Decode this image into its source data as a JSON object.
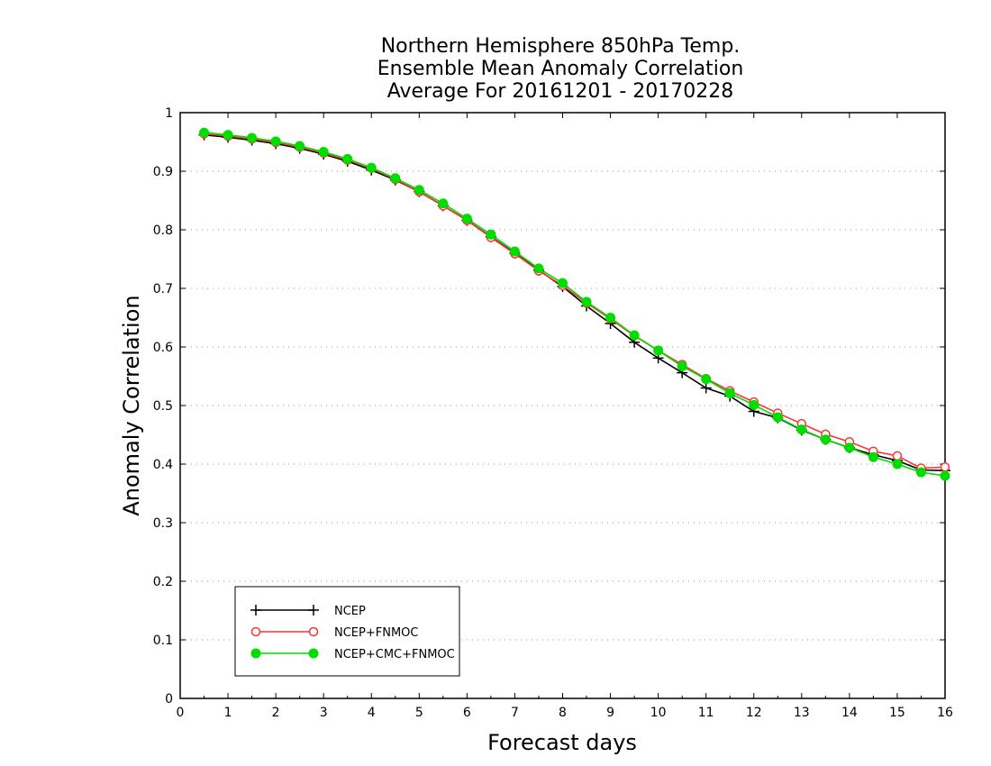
{
  "chart_data": {
    "type": "line",
    "title_lines": [
      "Northern Hemisphere 850hPa Temp.",
      "Ensemble Mean Anomaly Correlation",
      "Average For 20161201 - 20170228"
    ],
    "xlabel": "Forecast days",
    "ylabel": "Anomaly Correlation",
    "xlim": [
      0,
      16
    ],
    "ylim": [
      0,
      1
    ],
    "x_ticks": [
      "0",
      "1",
      "2",
      "3",
      "4",
      "5",
      "6",
      "7",
      "8",
      "9",
      "10",
      "11",
      "12",
      "13",
      "14",
      "15",
      "16"
    ],
    "y_ticks": [
      "0",
      "0.1",
      "0.2",
      "0.3",
      "0.4",
      "0.5",
      "0.6",
      "0.7",
      "0.8",
      "0.9",
      "1"
    ],
    "grid": "horizontal-dotted",
    "legend_position": "bottom-left",
    "x": [
      0.5,
      1,
      1.5,
      2,
      2.5,
      3,
      3.5,
      4,
      4.5,
      5,
      5.5,
      6,
      6.5,
      7,
      7.5,
      8,
      8.5,
      9,
      9.5,
      10,
      10.5,
      11,
      11.5,
      12,
      12.5,
      13,
      13.5,
      14,
      14.5,
      15,
      15.5,
      16
    ],
    "series": [
      {
        "name": "NCEP",
        "color": "#000000",
        "marker": "plus",
        "values": [
          0.962,
          0.958,
          0.953,
          0.947,
          0.939,
          0.929,
          0.917,
          0.902,
          0.885,
          0.865,
          0.841,
          0.816,
          0.788,
          0.76,
          0.731,
          0.703,
          0.67,
          0.64,
          0.608,
          0.581,
          0.556,
          0.53,
          0.516,
          0.49,
          0.479,
          0.458,
          0.442,
          0.428,
          0.416,
          0.406,
          0.39,
          0.389
        ]
      },
      {
        "name": "NCEP+FNMOC",
        "color": "#ff3333",
        "marker": "open-circle",
        "values": [
          0.964,
          0.96,
          0.955,
          0.949,
          0.941,
          0.931,
          0.919,
          0.905,
          0.886,
          0.865,
          0.841,
          0.816,
          0.787,
          0.759,
          0.73,
          0.705,
          0.675,
          0.648,
          0.619,
          0.594,
          0.57,
          0.546,
          0.525,
          0.506,
          0.487,
          0.469,
          0.451,
          0.438,
          0.422,
          0.414,
          0.393,
          0.395
        ]
      },
      {
        "name": "NCEP+CMC+FNMOC",
        "color": "#00dd00",
        "marker": "filled-circle",
        "values": [
          0.966,
          0.962,
          0.957,
          0.951,
          0.943,
          0.933,
          0.921,
          0.906,
          0.888,
          0.868,
          0.845,
          0.819,
          0.792,
          0.763,
          0.734,
          0.709,
          0.677,
          0.65,
          0.62,
          0.594,
          0.567,
          0.545,
          0.521,
          0.501,
          0.48,
          0.459,
          0.442,
          0.428,
          0.412,
          0.4,
          0.386,
          0.38
        ]
      }
    ]
  }
}
